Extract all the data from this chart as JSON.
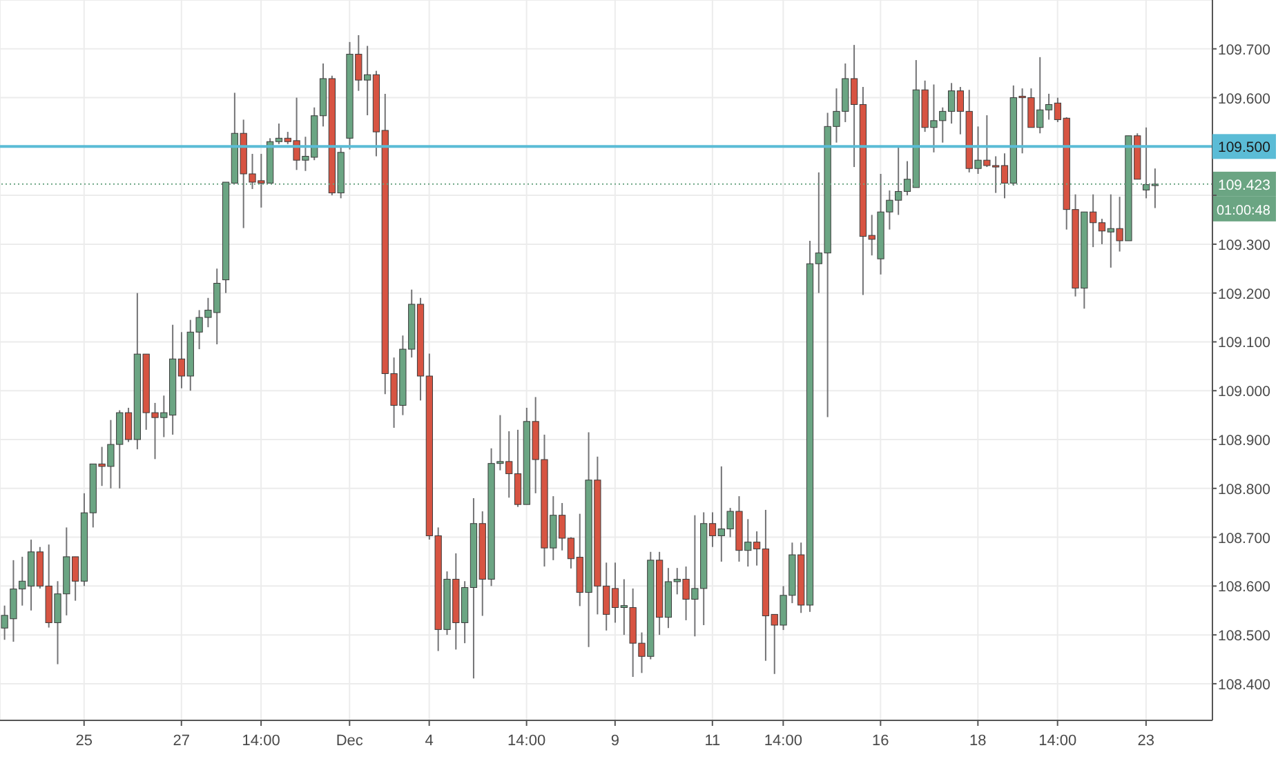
{
  "chart_data": {
    "type": "candlestick",
    "categories": [
      null,
      null,
      null,
      null,
      null,
      null,
      null,
      null,
      null,
      "25",
      null,
      null,
      null,
      null,
      null,
      null,
      null,
      null,
      null,
      null,
      "27",
      null,
      null,
      null,
      null,
      null,
      null,
      null,
      null,
      "14:00",
      null,
      null,
      null,
      null,
      null,
      null,
      null,
      null,
      null,
      "Dec",
      null,
      null,
      null,
      null,
      null,
      null,
      null,
      null,
      "4",
      null,
      null,
      null,
      null,
      null,
      null,
      null,
      null,
      null,
      null,
      "14:00",
      null,
      null,
      null,
      null,
      null,
      null,
      null,
      null,
      null,
      "9",
      null,
      null,
      null,
      null,
      null,
      null,
      null,
      null,
      null,
      null,
      "11",
      null,
      null,
      null,
      null,
      null,
      null,
      null,
      "14:00",
      null,
      null,
      null,
      null,
      null,
      null,
      null,
      null,
      null,
      null,
      "16",
      null,
      null,
      null,
      null,
      null,
      null,
      null,
      null,
      null,
      null,
      "18",
      null,
      null,
      null,
      null,
      null,
      null,
      null,
      null,
      "14:00",
      null,
      null,
      null,
      null,
      null,
      null,
      null,
      null,
      null,
      "23",
      null
    ],
    "ohlc": [
      [
        108.514,
        108.56,
        108.49,
        108.54
      ],
      [
        108.533,
        108.653,
        108.486,
        108.594
      ],
      [
        108.594,
        108.66,
        108.56,
        108.61
      ],
      [
        108.6,
        108.695,
        108.55,
        108.67
      ],
      [
        108.67,
        108.68,
        108.595,
        108.6
      ],
      [
        108.6,
        108.685,
        108.515,
        108.525
      ],
      [
        108.525,
        108.61,
        108.44,
        108.584
      ],
      [
        108.584,
        108.72,
        108.54,
        108.66
      ],
      [
        108.66,
        108.66,
        108.57,
        108.61
      ],
      [
        108.61,
        108.79,
        108.6,
        108.75
      ],
      [
        108.75,
        108.85,
        108.72,
        108.85
      ],
      [
        108.85,
        108.885,
        108.805,
        108.845
      ],
      [
        108.845,
        108.94,
        108.8,
        108.89
      ],
      [
        108.89,
        108.96,
        108.8,
        108.955
      ],
      [
        108.955,
        108.965,
        108.895,
        108.9
      ],
      [
        108.9,
        109.2,
        108.88,
        109.075
      ],
      [
        109.075,
        109.075,
        108.92,
        108.955
      ],
      [
        108.955,
        108.975,
        108.86,
        108.945
      ],
      [
        108.945,
        108.99,
        108.905,
        108.955
      ],
      [
        108.95,
        109.135,
        108.91,
        109.065
      ],
      [
        109.065,
        109.12,
        109.005,
        109.03
      ],
      [
        109.03,
        109.145,
        109.0,
        109.12
      ],
      [
        109.12,
        109.165,
        109.085,
        109.15
      ],
      [
        109.15,
        109.19,
        109.13,
        109.165
      ],
      [
        109.16,
        109.25,
        109.095,
        109.22
      ],
      [
        109.227,
        109.427,
        109.2,
        109.427
      ],
      [
        109.425,
        109.61,
        109.425,
        109.527
      ],
      [
        109.527,
        109.555,
        109.333,
        109.444
      ],
      [
        109.444,
        109.485,
        109.413,
        109.427
      ],
      [
        109.43,
        109.485,
        109.375,
        109.425
      ],
      [
        109.425,
        109.517,
        109.425,
        109.51
      ],
      [
        109.51,
        109.547,
        109.505,
        109.517
      ],
      [
        109.517,
        109.53,
        109.505,
        109.51
      ],
      [
        109.512,
        109.6,
        109.452,
        109.472
      ],
      [
        109.472,
        109.52,
        109.45,
        109.48
      ],
      [
        109.478,
        109.58,
        109.472,
        109.563
      ],
      [
        109.563,
        109.67,
        109.541,
        109.639
      ],
      [
        109.639,
        109.645,
        109.4,
        109.405
      ],
      [
        109.405,
        109.502,
        109.394,
        109.488
      ],
      [
        109.517,
        109.714,
        109.494,
        109.689
      ],
      [
        109.689,
        109.728,
        109.614,
        109.636
      ],
      [
        109.636,
        109.706,
        109.564,
        109.647
      ],
      [
        109.647,
        109.655,
        109.48,
        109.53
      ],
      [
        109.533,
        109.608,
        108.993,
        109.035
      ],
      [
        109.035,
        109.068,
        108.924,
        108.97
      ],
      [
        108.97,
        109.113,
        108.95,
        109.085
      ],
      [
        109.085,
        109.207,
        109.068,
        109.177
      ],
      [
        109.177,
        109.19,
        108.98,
        109.03
      ],
      [
        109.03,
        109.076,
        108.695,
        108.703
      ],
      [
        108.703,
        108.72,
        108.467,
        108.511
      ],
      [
        108.511,
        108.63,
        108.5,
        108.614
      ],
      [
        108.614,
        108.667,
        108.47,
        108.525
      ],
      [
        108.525,
        108.61,
        108.483,
        108.597
      ],
      [
        108.597,
        108.78,
        108.411,
        108.728
      ],
      [
        108.728,
        108.753,
        108.539,
        108.614
      ],
      [
        108.614,
        108.882,
        108.6,
        108.851
      ],
      [
        108.851,
        108.95,
        108.837,
        108.855
      ],
      [
        108.855,
        108.917,
        108.781,
        108.83
      ],
      [
        108.83,
        108.92,
        108.762,
        108.767
      ],
      [
        108.767,
        108.965,
        108.767,
        108.937
      ],
      [
        108.937,
        108.987,
        108.79,
        108.859
      ],
      [
        108.859,
        108.91,
        108.64,
        108.678
      ],
      [
        108.678,
        108.784,
        108.653,
        108.745
      ],
      [
        108.745,
        108.77,
        108.673,
        108.698
      ],
      [
        108.698,
        108.7,
        108.636,
        108.656
      ],
      [
        108.659,
        108.748,
        108.559,
        108.587
      ],
      [
        108.587,
        108.915,
        108.475,
        108.817
      ],
      [
        108.817,
        108.865,
        108.542,
        108.6
      ],
      [
        108.6,
        108.648,
        108.509,
        108.542
      ],
      [
        108.595,
        108.648,
        108.525,
        108.556
      ],
      [
        108.556,
        108.614,
        108.5,
        108.56
      ],
      [
        108.556,
        108.595,
        108.414,
        108.483
      ],
      [
        108.483,
        108.505,
        108.422,
        108.456
      ],
      [
        108.456,
        108.67,
        108.45,
        108.653
      ],
      [
        108.653,
        108.67,
        108.5,
        108.536
      ],
      [
        108.536,
        108.637,
        108.514,
        108.609
      ],
      [
        108.609,
        108.637,
        108.583,
        108.614
      ],
      [
        108.614,
        108.64,
        108.53,
        108.573
      ],
      [
        108.573,
        108.745,
        108.497,
        108.595
      ],
      [
        108.595,
        108.751,
        108.52,
        108.728
      ],
      [
        108.728,
        108.751,
        108.68,
        108.703
      ],
      [
        108.703,
        108.845,
        108.65,
        108.717
      ],
      [
        108.717,
        108.76,
        108.7,
        108.753
      ],
      [
        108.753,
        108.784,
        108.65,
        108.673
      ],
      [
        108.673,
        108.737,
        108.64,
        108.69
      ],
      [
        108.69,
        108.712,
        108.642,
        108.676
      ],
      [
        108.676,
        108.756,
        108.447,
        108.539
      ],
      [
        108.542,
        108.542,
        108.42,
        108.52
      ],
      [
        108.52,
        108.6,
        108.51,
        108.581
      ],
      [
        108.581,
        108.689,
        108.565,
        108.664
      ],
      [
        108.664,
        108.689,
        108.545,
        108.561
      ],
      [
        108.561,
        109.307,
        108.547,
        109.26
      ],
      [
        109.26,
        109.447,
        109.2,
        109.282
      ],
      [
        109.282,
        109.569,
        108.946,
        109.541
      ],
      [
        109.541,
        109.619,
        109.508,
        109.572
      ],
      [
        109.572,
        109.67,
        109.55,
        109.639
      ],
      [
        109.639,
        109.708,
        109.458,
        109.586
      ],
      [
        109.586,
        109.622,
        109.196,
        109.316
      ],
      [
        109.318,
        109.36,
        109.277,
        109.31
      ],
      [
        109.27,
        109.444,
        109.238,
        109.366
      ],
      [
        109.366,
        109.41,
        109.33,
        109.39
      ],
      [
        109.39,
        109.5,
        109.36,
        109.408
      ],
      [
        109.408,
        109.47,
        109.4,
        109.433
      ],
      [
        109.416,
        109.677,
        109.416,
        109.616
      ],
      [
        109.616,
        109.635,
        109.53,
        109.539
      ],
      [
        109.539,
        109.627,
        109.488,
        109.553
      ],
      [
        109.553,
        109.58,
        109.508,
        109.572
      ],
      [
        109.572,
        109.63,
        109.547,
        109.614
      ],
      [
        109.614,
        109.622,
        109.525,
        109.572
      ],
      [
        109.572,
        109.616,
        109.447,
        109.455
      ],
      [
        109.455,
        109.541,
        109.444,
        109.472
      ],
      [
        109.472,
        109.564,
        109.458,
        109.461
      ],
      [
        109.461,
        109.48,
        109.405,
        109.458
      ],
      [
        109.461,
        109.486,
        109.394,
        109.425
      ],
      [
        109.425,
        109.625,
        109.42,
        109.6
      ],
      [
        109.603,
        109.619,
        109.486,
        109.6
      ],
      [
        109.6,
        109.619,
        109.539,
        109.539
      ],
      [
        109.539,
        109.683,
        109.527,
        109.575
      ],
      [
        109.575,
        109.608,
        109.555,
        109.586
      ],
      [
        109.589,
        109.6,
        109.55,
        109.555
      ],
      [
        109.558,
        109.56,
        109.33,
        109.371
      ],
      [
        109.371,
        109.402,
        109.193,
        109.21
      ],
      [
        109.21,
        109.366,
        109.168,
        109.366
      ],
      [
        109.366,
        109.402,
        109.294,
        109.344
      ],
      [
        109.344,
        109.352,
        109.3,
        109.327
      ],
      [
        109.325,
        109.402,
        109.252,
        109.332
      ],
      [
        109.332,
        109.397,
        109.285,
        109.307
      ],
      [
        109.307,
        109.522,
        109.307,
        109.522
      ],
      [
        109.522,
        109.527,
        109.433,
        109.433
      ],
      [
        109.411,
        109.539,
        109.394,
        109.422
      ],
      [
        109.42,
        109.455,
        109.374,
        109.423
      ]
    ],
    "colors": [
      "#6ba583",
      "#6ba583",
      "#6ba583",
      "#6ba583",
      "#d75442",
      "#d75442",
      "#6ba583",
      "#6ba583",
      "#d75442",
      "#6ba583",
      "#6ba583",
      "#d75442",
      "#6ba583",
      "#6ba583",
      "#d75442",
      "#6ba583",
      "#d75442",
      "#d75442",
      "#6ba583",
      "#6ba583",
      "#d75442",
      "#6ba583",
      "#6ba583",
      "#6ba583",
      "#6ba583",
      "#6ba583",
      "#6ba583",
      "#d75442",
      "#d75442",
      "#d75442",
      "#6ba583",
      "#6ba583",
      "#d75442",
      "#d75442",
      "#6ba583",
      "#6ba583",
      "#6ba583",
      "#d75442",
      "#6ba583",
      "#6ba583",
      "#d75442",
      "#6ba583",
      "#d75442",
      "#d75442",
      "#d75442",
      "#6ba583",
      "#6ba583",
      "#d75442",
      "#d75442",
      "#d75442",
      "#6ba583",
      "#d75442",
      "#6ba583",
      "#6ba583",
      "#d75442",
      "#6ba583",
      "#6ba583",
      "#d75442",
      "#d75442",
      "#6ba583",
      "#d75442",
      "#d75442",
      "#6ba583",
      "#d75442",
      "#d75442",
      "#d75442",
      "#6ba583",
      "#d75442",
      "#d75442",
      "#d75442",
      "#6ba583",
      "#d75442",
      "#d75442",
      "#6ba583",
      "#d75442",
      "#6ba583",
      "#6ba583",
      "#d75442",
      "#6ba583",
      "#6ba583",
      "#d75442",
      "#6ba583",
      "#6ba583",
      "#d75442",
      "#6ba583",
      "#d75442",
      "#d75442",
      "#d75442",
      "#6ba583",
      "#6ba583",
      "#d75442",
      "#6ba583",
      "#6ba583",
      "#6ba583",
      "#6ba583",
      "#6ba583",
      "#d75442",
      "#d75442",
      "#d75442",
      "#6ba583",
      "#6ba583",
      "#6ba583",
      "#6ba583",
      "#6ba583",
      "#d75442",
      "#6ba583",
      "#6ba583",
      "#6ba583",
      "#d75442",
      "#d75442",
      "#6ba583",
      "#d75442",
      "#d75442",
      "#d75442",
      "#6ba583",
      "#d75442",
      "#d75442",
      "#6ba583",
      "#6ba583",
      "#d75442",
      "#d75442",
      "#d75442",
      "#6ba583",
      "#d75442",
      "#d75442",
      "#6ba583",
      "#d75442",
      "#6ba583",
      "#d75442",
      "#6ba583",
      "#6ba583"
    ],
    "ylim": [
      108.325,
      109.8
    ],
    "yticks": [
      {
        "value": 108.4,
        "label": "108.400"
      },
      {
        "value": 108.5,
        "label": "108.500"
      },
      {
        "value": 108.6,
        "label": "108.600"
      },
      {
        "value": 108.7,
        "label": "108.700"
      },
      {
        "value": 108.8,
        "label": "108.800"
      },
      {
        "value": 108.9,
        "label": "108.900"
      },
      {
        "value": 109.0,
        "label": "109.000"
      },
      {
        "value": 109.1,
        "label": "109.100"
      },
      {
        "value": 109.2,
        "label": "109.200"
      },
      {
        "value": 109.3,
        "label": "109.300"
      },
      {
        "value": 109.4,
        "label": null
      },
      {
        "value": 109.5,
        "label": "109.500"
      },
      {
        "value": 109.6,
        "label": "109.600"
      },
      {
        "value": 109.7,
        "label": "109.700"
      }
    ],
    "ref_lines": [
      {
        "axis": "y",
        "value": 109.5,
        "color": "#5bbcd6"
      },
      {
        "axis": "y",
        "value": 109.423,
        "label": "109.423",
        "color": "#6ba583",
        "line_style": "dotted"
      }
    ],
    "annotations": [
      "01:00:48"
    ],
    "grid": true
  }
}
